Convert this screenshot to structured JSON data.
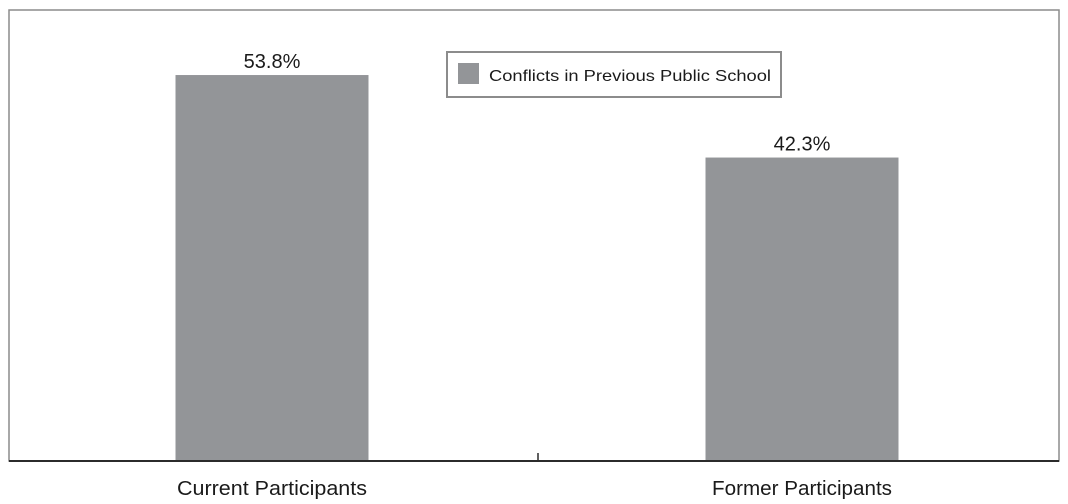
{
  "chart_data": {
    "type": "bar",
    "categories": [
      "Current Participants",
      "Former Participants"
    ],
    "series": [
      {
        "name": "Conflicts in Previous Public School",
        "values": [
          53.8,
          42.3
        ],
        "data_labels": [
          "53.8%",
          "42.3%"
        ]
      }
    ],
    "title": "",
    "xlabel": "",
    "ylabel": "",
    "ylim": [
      0,
      60
    ],
    "grid": false,
    "legend_position": "top-center",
    "colors": {
      "bar": "#939598",
      "frame": "#8c8c8c",
      "axis": "#2b2b2b"
    }
  }
}
